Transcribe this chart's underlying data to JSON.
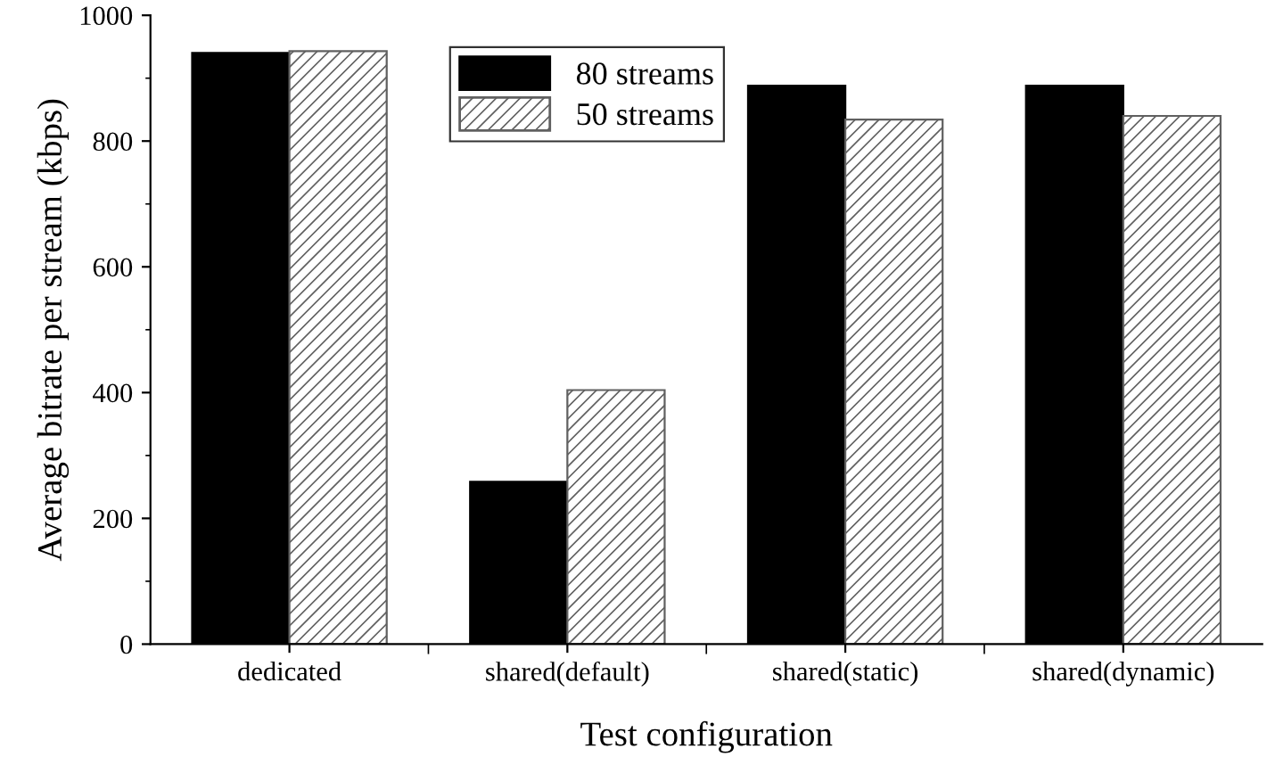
{
  "chart_data": {
    "type": "bar",
    "xlabel": "Test configuration",
    "ylabel": "Average bitrate per stream (kbps)",
    "categories": [
      "dedicated",
      "shared(default)",
      "shared(static)",
      "shared(dynamic)"
    ],
    "series": [
      {
        "name": "80 streams",
        "color": "#000000",
        "values": [
          940,
          258,
          888,
          888
        ]
      },
      {
        "name": "50 streams",
        "color": "#606060",
        "values": [
          943,
          404,
          834,
          840
        ]
      }
    ],
    "ylim": [
      0,
      1000
    ],
    "yticks": [
      0,
      200,
      400,
      600,
      800,
      1000
    ],
    "grid": false,
    "legend": "top"
  }
}
